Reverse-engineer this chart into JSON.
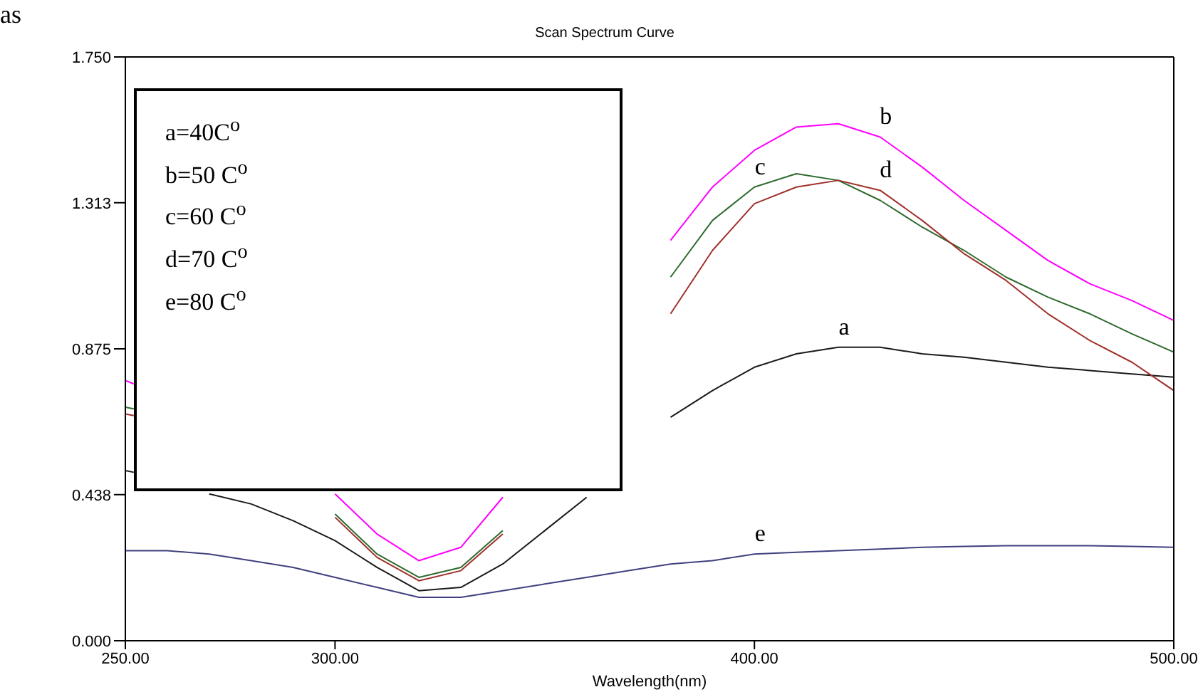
{
  "chart_data": {
    "type": "line",
    "title": "Scan Spectrum Curve",
    "xlabel": "Wavelength(nm)",
    "x": [
      250,
      252,
      260,
      270,
      280,
      290,
      300,
      310,
      320,
      330,
      340,
      350,
      360,
      370,
      380,
      390,
      400,
      410,
      420,
      430,
      440,
      450,
      460,
      470,
      480,
      490,
      500
    ],
    "series": [
      {
        "color": "#1a1a1a",
        "values": [
          0.51,
          0.505,
          null,
          0.44,
          0.41,
          0.36,
          0.3,
          0.22,
          0.15,
          0.16,
          0.23,
          0.33,
          0.43,
          null,
          0.67,
          0.75,
          0.82,
          0.86,
          0.88,
          0.88,
          0.86,
          0.85,
          0.835,
          0.82,
          0.81,
          0.8,
          0.79
        ]
      },
      {
        "color": "#ff00ff",
        "values": [
          0.78,
          0.77,
          null,
          null,
          null,
          null,
          0.44,
          0.32,
          0.24,
          0.28,
          0.43,
          null,
          null,
          null,
          1.2,
          1.36,
          1.47,
          1.54,
          1.55,
          1.51,
          1.42,
          1.32,
          1.23,
          1.14,
          1.07,
          1.02,
          0.96
        ]
      },
      {
        "color": "#2e6b2e",
        "values": [
          0.7,
          0.695,
          null,
          null,
          null,
          null,
          0.38,
          0.26,
          0.19,
          0.22,
          0.33,
          null,
          null,
          null,
          1.09,
          1.26,
          1.36,
          1.4,
          1.38,
          1.32,
          1.24,
          1.17,
          1.09,
          1.03,
          0.98,
          0.92,
          0.865
        ]
      },
      {
        "color": "#a0302c",
        "values": [
          0.68,
          0.675,
          null,
          null,
          null,
          null,
          0.37,
          0.25,
          0.18,
          0.21,
          0.32,
          null,
          null,
          null,
          0.98,
          1.17,
          1.31,
          1.36,
          1.38,
          1.35,
          1.26,
          1.16,
          1.08,
          0.98,
          0.9,
          0.835,
          0.75
        ]
      },
      {
        "color": "#404080",
        "values": [
          0.27,
          0.27,
          0.27,
          0.26,
          0.24,
          0.22,
          0.19,
          0.16,
          0.13,
          0.13,
          0.15,
          0.17,
          0.19,
          0.21,
          0.23,
          0.24,
          0.26,
          0.265,
          0.27,
          0.275,
          0.28,
          0.283,
          0.285,
          0.285,
          0.285,
          0.283,
          0.28
        ]
      }
    ],
    "xlim": [
      250,
      500
    ],
    "xticks": [
      {
        "value": 250,
        "label": "250.00"
      },
      {
        "value": 300,
        "label": "300.00"
      },
      {
        "value": 400,
        "label": "400.00"
      },
      {
        "value": 500,
        "label": "500.00"
      }
    ],
    "ylim": [
      0,
      1.75
    ],
    "yticks": [
      {
        "value": 0,
        "label": "0.000"
      },
      {
        "value": 0.438,
        "label": "0.438"
      },
      {
        "value": 0.875,
        "label": "0.875"
      },
      {
        "value": 1.313,
        "label": "1.313"
      },
      {
        "value": 1.75,
        "label": "1.750"
      }
    ],
    "grid": false,
    "legend": false,
    "marker": "none",
    "line_style": "solid",
    "annotations": [
      "as",
      "a=40C$^{o}$",
      "b=50 C$^{o}$",
      "c=60 C$^{o}$",
      "d=70 C$^{o}$",
      "e=80 C$^{o}$",
      {
        "text": "a",
        "x": 420,
        "y": 0.88
      },
      {
        "text": "b",
        "x": 430,
        "y": 1.51
      },
      {
        "text": "c",
        "x": 400,
        "y": 1.36
      },
      {
        "text": "d",
        "x": 430,
        "y": 1.35
      },
      {
        "text": "e",
        "x": 400,
        "y": 0.26
      }
    ]
  }
}
